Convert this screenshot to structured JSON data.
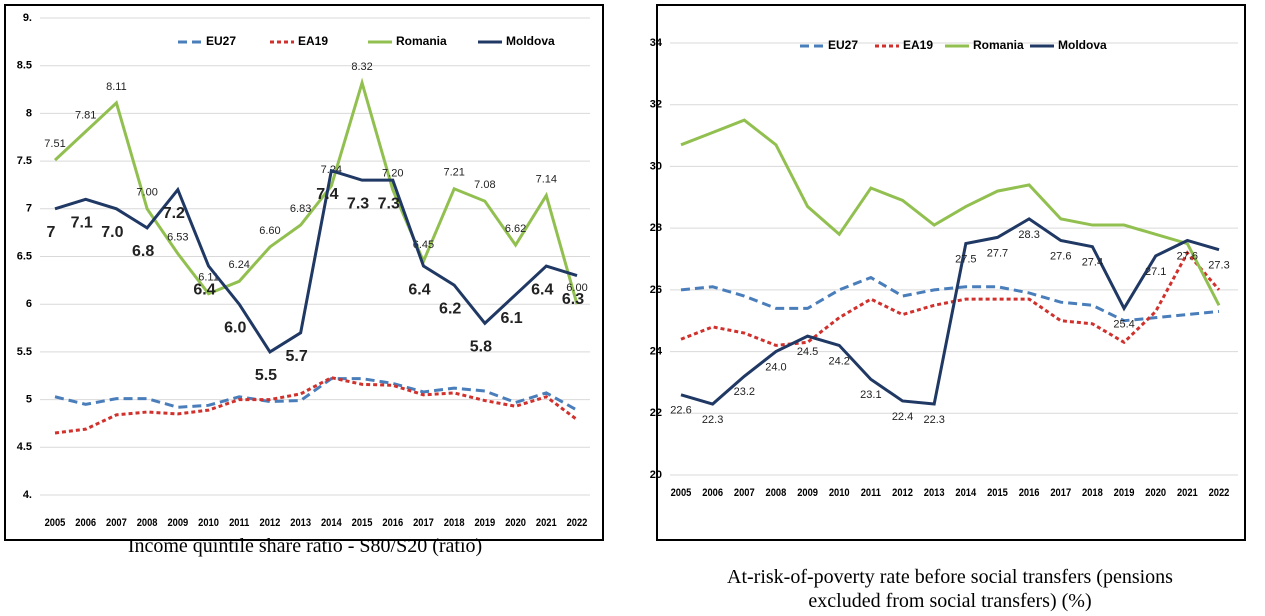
{
  "chart_data": [
    {
      "type": "line",
      "title": "Income quintile share ratio - S80/S20 (ratio)",
      "categories": [
        "2005",
        "2006",
        "2007",
        "2008",
        "2009",
        "2010",
        "2011",
        "2012",
        "2013",
        "2014",
        "2015",
        "2016",
        "2017",
        "2018",
        "2019",
        "2020",
        "2021",
        "2022"
      ],
      "ylim": [
        4,
        9
      ],
      "yticks": [
        {
          "value": 4,
          "label": "4."
        },
        4.5,
        5,
        5.5,
        6,
        6.5,
        7,
        7.5,
        8,
        8.5,
        {
          "value": 9,
          "label": "9."
        }
      ],
      "grid": true,
      "legend": "top",
      "series": [
        {
          "name": "EU27",
          "color": "#4a7ebb",
          "dash": "dashed",
          "values": [
            5.03,
            4.95,
            5.01,
            5.01,
            4.92,
            4.94,
            5.03,
            4.98,
            4.99,
            5.22,
            5.22,
            5.17,
            5.08,
            5.12,
            5.09,
            4.97,
            5.07,
            4.89
          ]
        },
        {
          "name": "EA19",
          "color": "#d0312d",
          "dash": "dotted",
          "values": [
            4.65,
            4.69,
            4.84,
            4.87,
            4.85,
            4.89,
            5.0,
            5.0,
            5.06,
            5.23,
            5.16,
            5.15,
            5.05,
            5.07,
            4.99,
            4.93,
            5.03,
            4.79
          ]
        },
        {
          "name": "Romania",
          "color": "#92c050",
          "values": [
            7.51,
            7.81,
            8.11,
            7.0,
            6.53,
            6.11,
            6.24,
            6.6,
            6.83,
            7.24,
            8.32,
            7.2,
            6.45,
            7.21,
            7.08,
            6.62,
            7.14,
            6.0
          ],
          "value_labels": [
            "7.51",
            "7.81",
            "8.11",
            "7.00",
            "6.53",
            "6.11",
            "6.24",
            "6.60",
            "6.83",
            "7.24",
            "8.32",
            "7.20",
            "6.45",
            "7.21",
            "7.08",
            "6.62",
            "7.14",
            "6.00"
          ]
        },
        {
          "name": "Moldova",
          "color": "#1f3864",
          "values": [
            7.0,
            7.1,
            7.0,
            6.8,
            7.2,
            6.4,
            6.0,
            5.5,
            5.7,
            7.4,
            7.3,
            7.3,
            6.4,
            6.2,
            5.8,
            6.1,
            6.4,
            6.3
          ],
          "value_labels": [
            "7",
            "7.1",
            "7.0",
            "6.8",
            "7.2",
            "6.4",
            "6.0",
            "5.5",
            "5.7",
            "7.4",
            "7.3",
            "7.3",
            "6.4",
            "6.2",
            "5.8",
            "6.1",
            "6.4",
            "6.3"
          ]
        }
      ]
    },
    {
      "type": "line",
      "title": "At-risk-of-poverty rate before social transfers (pensions excluded from social transfers) (%)",
      "categories": [
        "2005",
        "2006",
        "2007",
        "2008",
        "2009",
        "2010",
        "2011",
        "2012",
        "2013",
        "2014",
        "2015",
        "2016",
        "2017",
        "2018",
        "2019",
        "2020",
        "2021",
        "2022"
      ],
      "ylim": [
        20,
        34
      ],
      "yticks": [
        20,
        22,
        24,
        26,
        28,
        30,
        32,
        34
      ],
      "grid": true,
      "legend": "top",
      "series": [
        {
          "name": "EU27",
          "color": "#4a7ebb",
          "dash": "dashed",
          "values": [
            26.0,
            26.1,
            25.8,
            25.4,
            25.4,
            26.0,
            26.4,
            25.8,
            26.0,
            26.1,
            26.1,
            25.9,
            25.6,
            25.5,
            25.0,
            25.1,
            25.2,
            25.3
          ]
        },
        {
          "name": "EA19",
          "color": "#d0312d",
          "dash": "dotted",
          "values": [
            24.4,
            24.8,
            24.6,
            24.2,
            24.3,
            25.1,
            25.7,
            25.2,
            25.5,
            25.7,
            25.7,
            25.7,
            25.0,
            24.9,
            24.3,
            25.3,
            27.2,
            26.0
          ]
        },
        {
          "name": "Romania",
          "color": "#92c050",
          "values": [
            30.7,
            31.1,
            31.5,
            30.7,
            28.7,
            27.8,
            29.3,
            28.9,
            28.1,
            28.7,
            29.2,
            29.4,
            28.3,
            28.1,
            28.1,
            27.8,
            27.5,
            25.5
          ]
        },
        {
          "name": "Moldova",
          "color": "#1f3864",
          "values": [
            22.6,
            22.3,
            23.2,
            24.0,
            24.5,
            24.2,
            23.1,
            22.4,
            22.3,
            27.5,
            27.7,
            28.3,
            27.6,
            27.4,
            25.4,
            27.1,
            27.6,
            27.3
          ],
          "value_labels": [
            "22.6",
            "22.3",
            "23.2",
            "24.0",
            "24.5",
            "24.2",
            "23.1",
            "22.4",
            "22.3",
            "27.5",
            "27.7",
            "28.3",
            "27.6",
            "27.4",
            "25.4",
            "27.1",
            "27.6",
            "27.3"
          ]
        }
      ]
    }
  ]
}
